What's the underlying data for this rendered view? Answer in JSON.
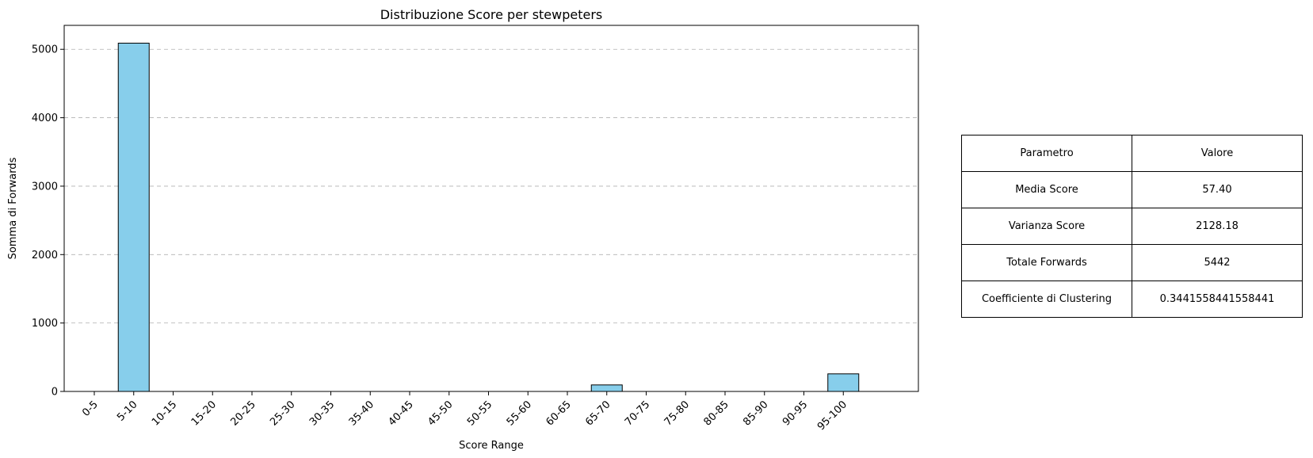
{
  "chart_data": {
    "type": "bar",
    "title": "Distribuzione Score per stewpeters",
    "xlabel": "Score Range",
    "ylabel": "Somma di Forwards",
    "categories": [
      "0-5",
      "5-10",
      "10-15",
      "15-20",
      "20-25",
      "25-30",
      "30-35",
      "35-40",
      "40-45",
      "45-50",
      "50-55",
      "55-60",
      "60-65",
      "65-70",
      "70-75",
      "75-80",
      "80-85",
      "85-90",
      "90-95",
      "95-100"
    ],
    "values": [
      0,
      5090,
      0,
      0,
      0,
      0,
      0,
      0,
      0,
      0,
      0,
      0,
      0,
      95,
      0,
      0,
      0,
      0,
      0,
      257
    ],
    "yticks": [
      0,
      1000,
      2000,
      3000,
      4000,
      5000
    ],
    "ylim": [
      0,
      5350
    ],
    "grid": "y-dashed",
    "bar_color": "#87ceeb",
    "edge_color": "#000000"
  },
  "stats_table": {
    "header": [
      "Parametro",
      "Valore"
    ],
    "rows": [
      [
        "Media Score",
        "57.40"
      ],
      [
        "Varianza Score",
        "2128.18"
      ],
      [
        "Totale Forwards",
        "5442"
      ],
      [
        "Coefficiente di Clustering",
        "0.3441558441558441"
      ]
    ]
  }
}
